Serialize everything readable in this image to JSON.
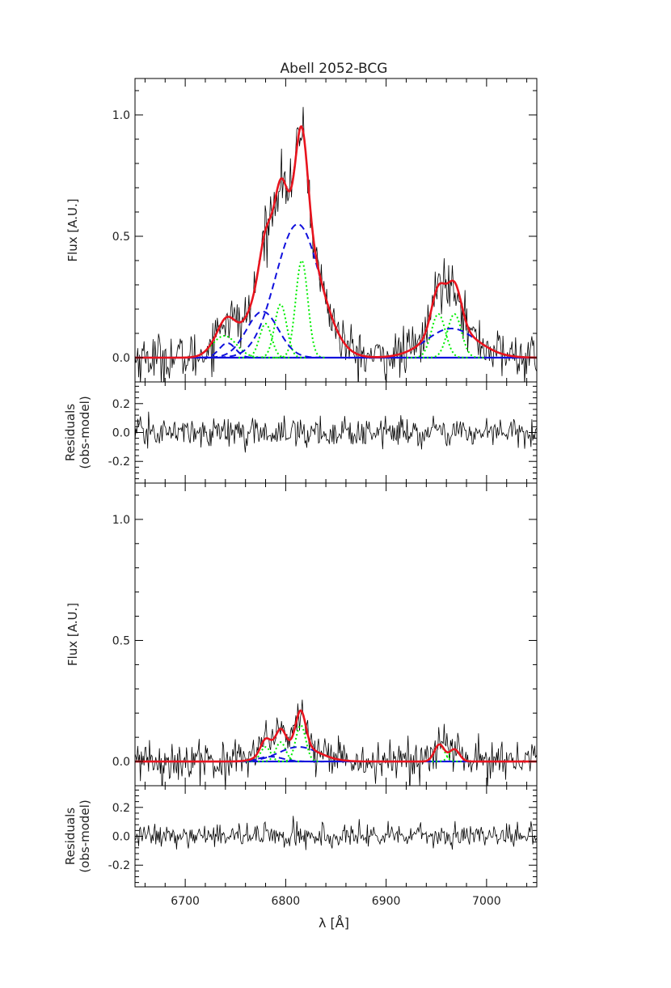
{
  "figure": {
    "title": "Abell 2052-BCG",
    "xlabel": "λ [Å]"
  },
  "chart_data": [
    {
      "type": "line",
      "panel": "flux-top",
      "ylabel": "Flux [A.U.]",
      "xlim": [
        6650,
        7050
      ],
      "ylim": [
        -0.1,
        1.15
      ],
      "yticks": [
        0.0,
        0.5,
        1.0
      ],
      "yticklabels": [
        "0.0",
        "0.5",
        "1.0"
      ],
      "noise": 0.05,
      "lines": [
        {
          "center": 6739,
          "sigma": 12,
          "amp": 0.09,
          "color": "#00ee00",
          "dash": "2,3"
        },
        {
          "center": 6780,
          "sigma": 6,
          "amp": 0.14,
          "color": "#00ee00",
          "dash": "2,3"
        },
        {
          "center": 6795,
          "sigma": 6,
          "amp": 0.22,
          "color": "#00ee00",
          "dash": "2,3"
        },
        {
          "center": 6816,
          "sigma": 6,
          "amp": 0.4,
          "color": "#00ee00",
          "dash": "2,3"
        },
        {
          "center": 6952,
          "sigma": 7,
          "amp": 0.18,
          "color": "#00ee00",
          "dash": "2,3"
        },
        {
          "center": 6968,
          "sigma": 7,
          "amp": 0.18,
          "color": "#00ee00",
          "dash": "2,3"
        },
        {
          "center": 6742,
          "sigma": 8,
          "amp": 0.06,
          "color": "#1010dd",
          "dash": "8,5"
        },
        {
          "center": 6777,
          "sigma": 16,
          "amp": 0.19,
          "color": "#1010dd",
          "dash": "8,5"
        },
        {
          "center": 6812,
          "sigma": 22,
          "amp": 0.55,
          "color": "#1010dd",
          "dash": "8,5"
        },
        {
          "center": 6965,
          "sigma": 25,
          "amp": 0.12,
          "color": "#1010dd",
          "dash": "8,5"
        }
      ]
    },
    {
      "type": "line",
      "panel": "residuals-top",
      "ylabel": [
        "Residuals",
        "(obs-model)"
      ],
      "xlim": [
        6650,
        7050
      ],
      "ylim": [
        -0.35,
        0.35
      ],
      "yticks": [
        -0.2,
        0.0,
        0.2
      ],
      "yticklabels": [
        "-0.2",
        "0.0",
        "0.2"
      ],
      "noise": 0.05
    },
    {
      "type": "line",
      "panel": "flux-bottom",
      "ylabel": "Flux [A.U.]",
      "xlim": [
        6650,
        7050
      ],
      "ylim": [
        -0.1,
        1.15
      ],
      "yticks": [
        0.0,
        0.5,
        1.0
      ],
      "yticklabels": [
        "0.0",
        "0.5",
        "1.0"
      ],
      "noise": 0.04,
      "lines": [
        {
          "center": 6780,
          "sigma": 5,
          "amp": 0.06,
          "color": "#00ee00",
          "dash": "2,3"
        },
        {
          "center": 6795,
          "sigma": 5,
          "amp": 0.08,
          "color": "#00ee00",
          "dash": "2,3"
        },
        {
          "center": 6815,
          "sigma": 5,
          "amp": 0.15,
          "color": "#00ee00",
          "dash": "2,3"
        },
        {
          "center": 6953,
          "sigma": 5,
          "amp": 0.07,
          "color": "#00ee00",
          "dash": "2,3"
        },
        {
          "center": 6968,
          "sigma": 5,
          "amp": 0.05,
          "color": "#00ee00",
          "dash": "2,3"
        },
        {
          "center": 6785,
          "sigma": 12,
          "amp": 0.02,
          "color": "#1010dd",
          "dash": "8,5"
        },
        {
          "center": 6813,
          "sigma": 20,
          "amp": 0.06,
          "color": "#1010dd",
          "dash": "8,5"
        }
      ]
    },
    {
      "type": "line",
      "panel": "residuals-bottom",
      "ylabel": [
        "Residuals",
        "(obs-model)"
      ],
      "xlim": [
        6650,
        7050
      ],
      "ylim": [
        -0.35,
        0.35
      ],
      "yticks": [
        -0.2,
        0.0,
        0.2
      ],
      "yticklabels": [
        "-0.2",
        "0.0",
        "0.2"
      ],
      "xticks": [
        6700,
        6800,
        6900,
        7000
      ],
      "xticklabels": [
        "6700",
        "6800",
        "6900",
        "7000"
      ],
      "noise": 0.04
    }
  ],
  "colors": {
    "data": "#000000",
    "model": "#e8141e",
    "narrow": "#00ee00",
    "broad": "#1010dd",
    "continuum": "#1010dd"
  }
}
